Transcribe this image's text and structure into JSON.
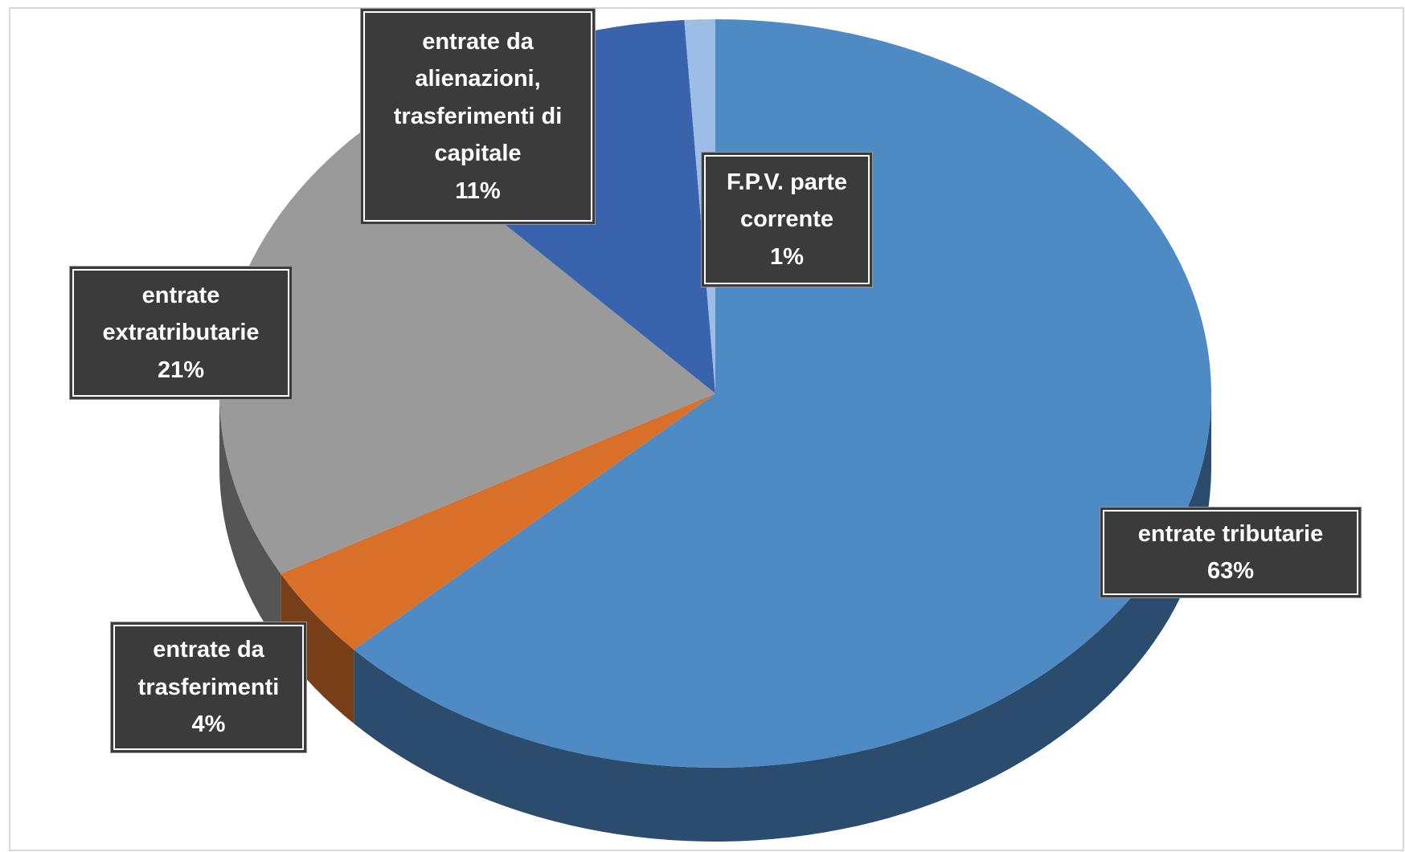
{
  "chart_data": {
    "type": "pie3d",
    "categories": [
      "entrate tributarie",
      "entrate da trasferimenti",
      "entrate extratributarie",
      "entrate da alienazioni, trasferimenti di capitale",
      "F.P.V. parte corrente"
    ],
    "values": [
      63,
      4,
      21,
      11,
      1
    ],
    "value_labels": [
      "63%",
      "4%",
      "21%",
      "11%",
      "1%"
    ],
    "colors": [
      "#4e8ac4",
      "#d9702a",
      "#9a9a9a",
      "#3a63ad",
      "#9dbde6"
    ]
  }
}
